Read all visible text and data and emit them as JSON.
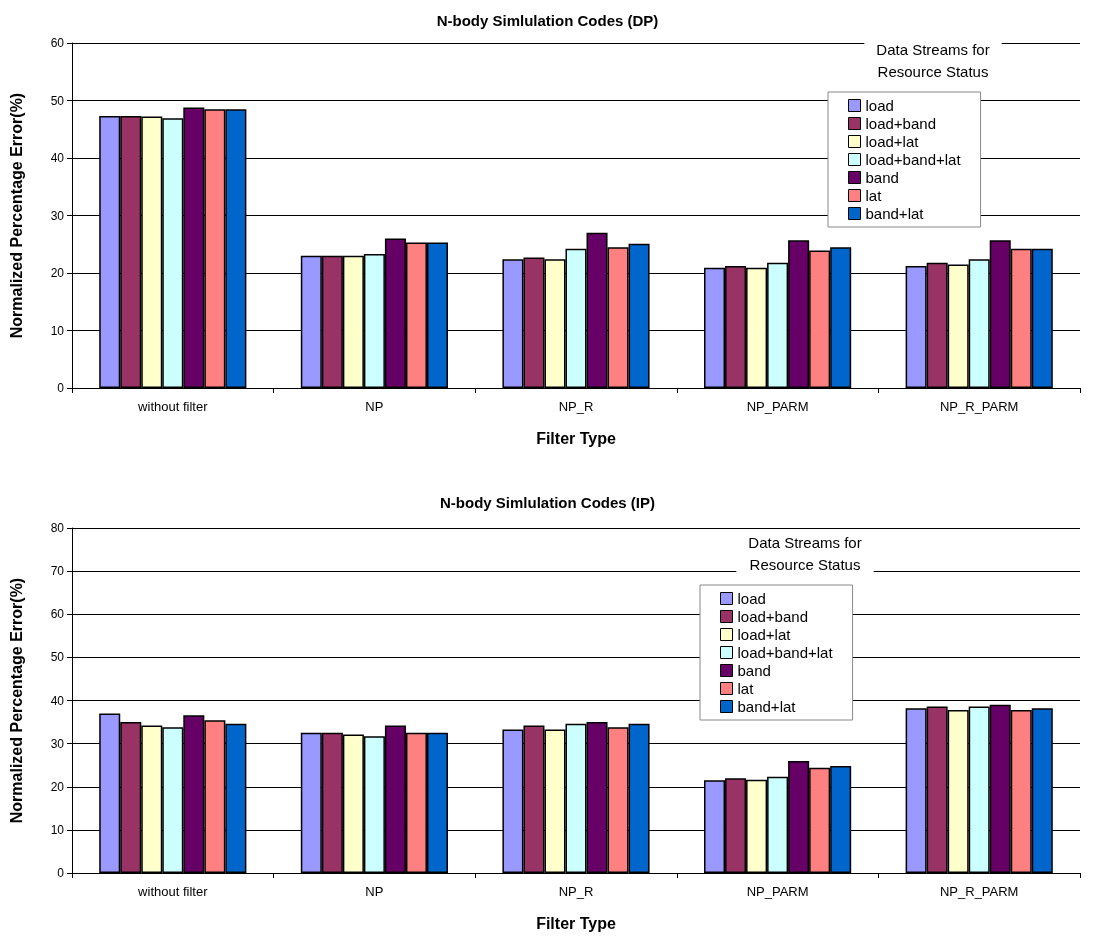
{
  "chart_data": [
    {
      "type": "bar",
      "title": "N-body Simlulation Codes (DP)",
      "xlabel": "Filter Type",
      "ylabel": "Normalized Percentage Error(%)",
      "legend_title": "Data Streams for\nResource Status",
      "categories": [
        "without filter",
        "NP",
        "NP_R",
        "NP_PARM",
        "NP_R_PARM"
      ],
      "ylim": [
        0,
        60
      ],
      "yticks": [
        0,
        10,
        20,
        30,
        40,
        50,
        60
      ],
      "grid": "y",
      "legend": "top right",
      "series": [
        {
          "name": "load",
          "color": "#9999ff",
          "values": [
            47.3,
            23,
            22.4,
            20.9,
            21.2
          ]
        },
        {
          "name": "load+band",
          "color": "#993366",
          "values": [
            47.3,
            23,
            22.7,
            21.2,
            21.8
          ]
        },
        {
          "name": "load+lat",
          "color": "#ffffcc",
          "values": [
            47.2,
            23,
            22.4,
            20.9,
            21.5
          ]
        },
        {
          "name": "load+band+lat",
          "color": "#ccffff",
          "values": [
            46.9,
            23.3,
            24.2,
            21.8,
            22.4
          ]
        },
        {
          "name": "band",
          "color": "#660066",
          "values": [
            48.8,
            26,
            27,
            25.7,
            25.7
          ]
        },
        {
          "name": "lat",
          "color": "#ff8080",
          "values": [
            48.5,
            25.3,
            24.5,
            23.9,
            24.2
          ]
        },
        {
          "name": "band+lat",
          "color": "#0066cc",
          "values": [
            48.5,
            25.3,
            25.1,
            24.5,
            24.2
          ]
        }
      ]
    },
    {
      "type": "bar",
      "title": "N-body Simlulation Codes (IP)",
      "xlabel": "Filter Type",
      "ylabel": "Normalized Percentage Error(%)",
      "legend_title": "Data Streams for\nResource Status",
      "categories": [
        "without filter",
        "NP",
        "NP_R",
        "NP_PARM",
        "NP_R_PARM"
      ],
      "ylim": [
        0,
        80
      ],
      "yticks": [
        0,
        10,
        20,
        30,
        40,
        50,
        60,
        70,
        80
      ],
      "grid": "y",
      "legend": "top right",
      "series": [
        {
          "name": "load",
          "color": "#9999ff",
          "values": [
            37,
            32.5,
            33.3,
            21.5,
            38.2
          ]
        },
        {
          "name": "load+band",
          "color": "#993366",
          "values": [
            35,
            32.5,
            34.2,
            22,
            38.6
          ]
        },
        {
          "name": "load+lat",
          "color": "#ffffcc",
          "values": [
            34.2,
            32.1,
            33.3,
            21.6,
            37.8
          ]
        },
        {
          "name": "load+band+lat",
          "color": "#ccffff",
          "values": [
            33.8,
            31.7,
            34.6,
            22.3,
            38.6
          ]
        },
        {
          "name": "band",
          "color": "#660066",
          "values": [
            36.6,
            34.2,
            35,
            26,
            39
          ]
        },
        {
          "name": "lat",
          "color": "#ff8080",
          "values": [
            35.4,
            32.5,
            33.8,
            24.4,
            37.8
          ]
        },
        {
          "name": "band+lat",
          "color": "#0066cc",
          "values": [
            34.6,
            32.5,
            34.6,
            24.8,
            38.2
          ]
        }
      ]
    }
  ]
}
